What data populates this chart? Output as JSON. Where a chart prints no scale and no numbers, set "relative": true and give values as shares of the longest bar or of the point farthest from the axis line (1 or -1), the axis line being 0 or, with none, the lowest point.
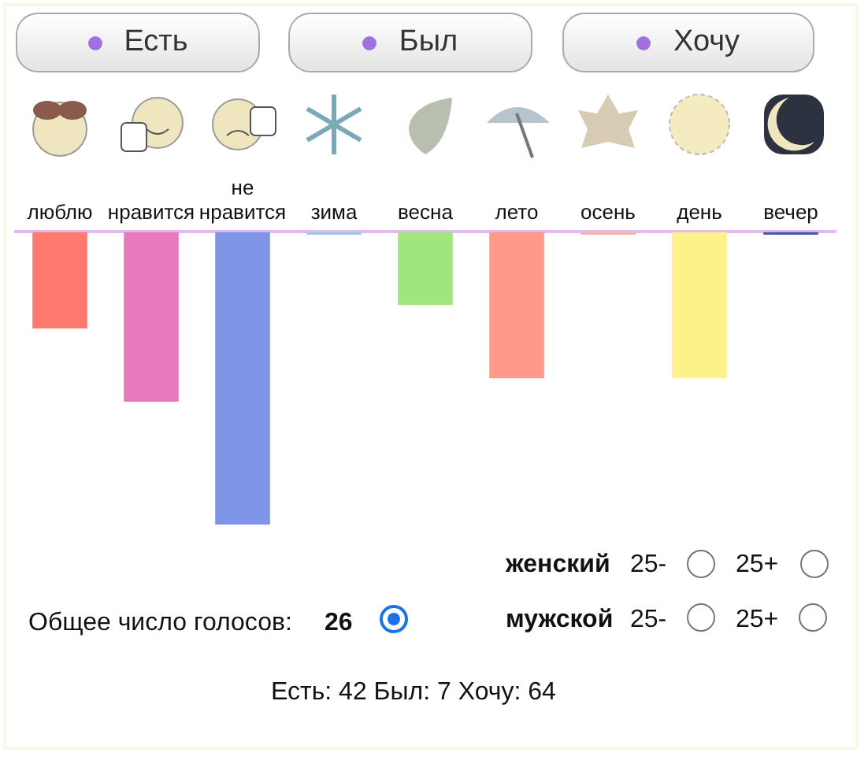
{
  "chart_data": {
    "type": "bar",
    "relative": true,
    "categories": [
      "люблю",
      "нравится",
      "не нравится",
      "зима",
      "весна",
      "лето",
      "осень",
      "день",
      "вечер"
    ],
    "values": [
      -0.33,
      -0.58,
      -1,
      -0.01,
      -0.25,
      -0.5,
      -0.01,
      -0.5,
      -0.01
    ],
    "colors": [
      "#ff7a6e",
      "#e879bd",
      "#7f95e8",
      "#9cc8f0",
      "#a0e57e",
      "#ff9a8a",
      "#f5b8a8",
      "#fdf28a",
      "#4a5aa8"
    ],
    "grid": false,
    "legend": false,
    "annotations": [
      "Есть",
      "Был",
      "Хочу",
      "женский",
      "25-",
      "25+",
      "мужской",
      "25-",
      "25+",
      "Общее число голосов:",
      "26",
      "Есть: 42 Был: 7 Хочу: 64"
    ]
  }
}
